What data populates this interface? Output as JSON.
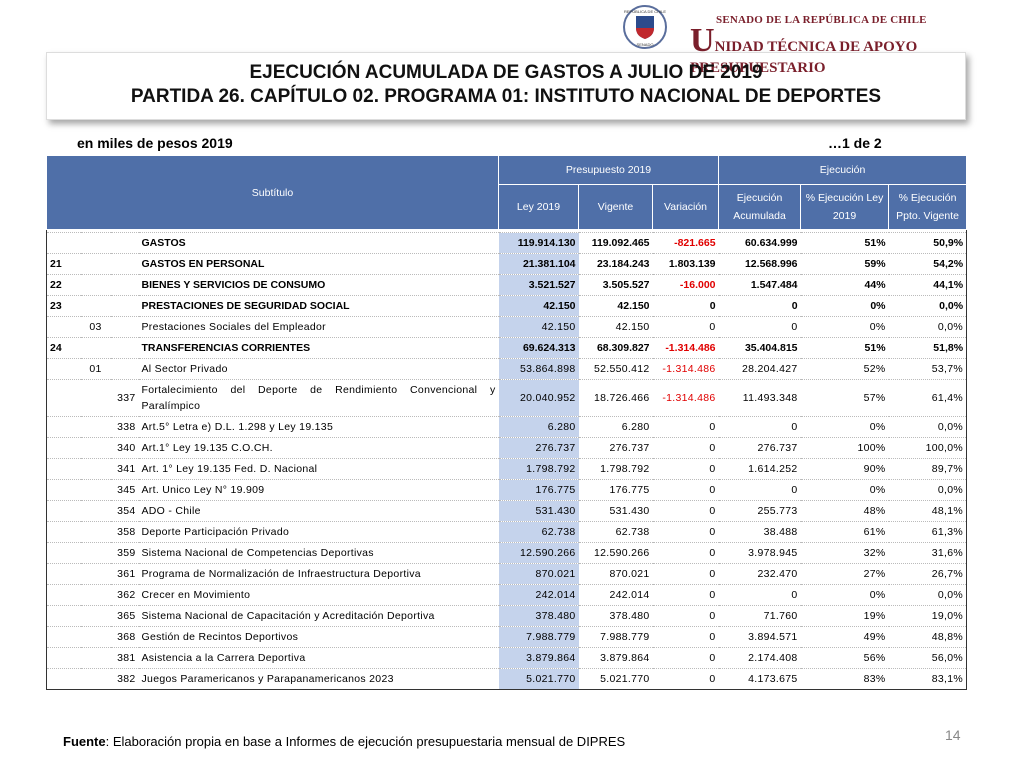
{
  "header": {
    "seal_top": "REPÚBLICA DE CHILE",
    "seal_bottom": "SENADO",
    "org_line1": "SENADO DE LA REPÚBLICA DE CHILE",
    "org_line2": "UNIDAD TÉCNICA DE APOYO PRESUPUESTARIO"
  },
  "title": {
    "line1": "EJECUCIÓN ACUMULADA DE GASTOS A JULIO DE 2019",
    "line2": "PARTIDA 26. CAPÍTULO 02. PROGRAMA 01:  INSTITUTO NACIONAL DE DEPORTES"
  },
  "subtitle_left": "en miles de pesos 2019",
  "subtitle_right": "…1 de 2",
  "table": {
    "header": {
      "subtitulo": "Subtítulo",
      "presupuesto": "Presupuesto 2019",
      "ejecucion": "Ejecución",
      "columns": [
        "Ley 2019",
        "Vigente",
        "Variación",
        "Ejecución Acumulada",
        "% Ejecución Ley 2019",
        "% Ejecución Ppto. Vigente"
      ]
    },
    "rows": [
      {
        "bold": true,
        "name": "GASTOS",
        "values": [
          "119.914.130",
          "119.092.465",
          "-821.665",
          "60.634.999",
          "51%",
          "50,9%"
        ]
      },
      {
        "bold": true,
        "subtitulo": "21",
        "name": "GASTOS EN PERSONAL",
        "values": [
          "21.381.104",
          "23.184.243",
          "1.803.139",
          "12.568.996",
          "59%",
          "54,2%"
        ]
      },
      {
        "bold": true,
        "subtitulo": "22",
        "name": "BIENES Y SERVICIOS DE CONSUMO",
        "values": [
          "3.521.527",
          "3.505.527",
          "-16.000",
          "1.547.484",
          "44%",
          "44,1%"
        ]
      },
      {
        "bold": true,
        "subtitulo": "23",
        "name": "PRESTACIONES DE SEGURIDAD SOCIAL",
        "values": [
          "42.150",
          "42.150",
          "0",
          "0",
          "0%",
          "0,0%"
        ]
      },
      {
        "item": "03",
        "name": "Prestaciones Sociales del Empleador",
        "values": [
          "42.150",
          "42.150",
          "0",
          "0",
          "0%",
          "0,0%"
        ]
      },
      {
        "bold": true,
        "subtitulo": "24",
        "name": "TRANSFERENCIAS CORRIENTES",
        "values": [
          "69.624.313",
          "68.309.827",
          "-1.314.486",
          "35.404.815",
          "51%",
          "51,8%"
        ]
      },
      {
        "item": "01",
        "name": "Al Sector Privado",
        "values": [
          "53.864.898",
          "52.550.412",
          "-1.314.486",
          "28.204.427",
          "52%",
          "53,7%"
        ]
      },
      {
        "asignacion": "337",
        "name": "Fortalecimiento del Deporte de Rendimiento Convencional y Paralímpico",
        "values": [
          "20.040.952",
          "18.726.466",
          "-1.314.486",
          "11.493.348",
          "57%",
          "61,4%"
        ]
      },
      {
        "asignacion": "338",
        "name": "Art.5° Letra e) D.L. 1.298 y Ley 19.135",
        "values": [
          "6.280",
          "6.280",
          "0",
          "0",
          "0%",
          "0,0%"
        ]
      },
      {
        "asignacion": "340",
        "name": "Art.1° Ley 19.135 C.O.CH.",
        "values": [
          "276.737",
          "276.737",
          "0",
          "276.737",
          "100%",
          "100,0%"
        ]
      },
      {
        "asignacion": "341",
        "name": "Art. 1° Ley 19.135 Fed. D. Nacional",
        "values": [
          "1.798.792",
          "1.798.792",
          "0",
          "1.614.252",
          "90%",
          "89,7%"
        ]
      },
      {
        "asignacion": "345",
        "name": "Art. Unico Ley N° 19.909",
        "values": [
          "176.775",
          "176.775",
          "0",
          "0",
          "0%",
          "0,0%"
        ]
      },
      {
        "asignacion": "354",
        "name": "ADO - Chile",
        "values": [
          "531.430",
          "531.430",
          "0",
          "255.773",
          "48%",
          "48,1%"
        ]
      },
      {
        "asignacion": "358",
        "name": "Deporte Participación Privado",
        "values": [
          "62.738",
          "62.738",
          "0",
          "38.488",
          "61%",
          "61,3%"
        ]
      },
      {
        "asignacion": "359",
        "name": "Sistema Nacional de Competencias Deportivas",
        "values": [
          "12.590.266",
          "12.590.266",
          "0",
          "3.978.945",
          "32%",
          "31,6%"
        ]
      },
      {
        "asignacion": "361",
        "name": "Programa de Normalización de Infraestructura Deportiva",
        "values": [
          "870.021",
          "870.021",
          "0",
          "232.470",
          "27%",
          "26,7%"
        ]
      },
      {
        "asignacion": "362",
        "name": "Crecer en Movimiento",
        "values": [
          "242.014",
          "242.014",
          "0",
          "0",
          "0%",
          "0,0%"
        ]
      },
      {
        "asignacion": "365",
        "name": "Sistema Nacional de Capacitación y Acreditación Deportiva",
        "values": [
          "378.480",
          "378.480",
          "0",
          "71.760",
          "19%",
          "19,0%"
        ]
      },
      {
        "asignacion": "368",
        "name": "Gestión de Recintos Deportivos",
        "values": [
          "7.988.779",
          "7.988.779",
          "0",
          "3.894.571",
          "49%",
          "48,8%"
        ]
      },
      {
        "asignacion": "381",
        "name": "Asistencia a la Carrera Deportiva",
        "values": [
          "3.879.864",
          "3.879.864",
          "0",
          "2.174.408",
          "56%",
          "56,0%"
        ]
      },
      {
        "asignacion": "382",
        "name": "Juegos Paramericanos y Parapanamericanos 2023",
        "values": [
          "5.021.770",
          "5.021.770",
          "0",
          "4.173.675",
          "83%",
          "83,1%"
        ]
      }
    ]
  },
  "footer": {
    "source_label": "Fuente",
    "source_text": ": Elaboración propia en base  a Informes de ejecución presupuestaria mensual de DIPRES",
    "page": "14"
  }
}
